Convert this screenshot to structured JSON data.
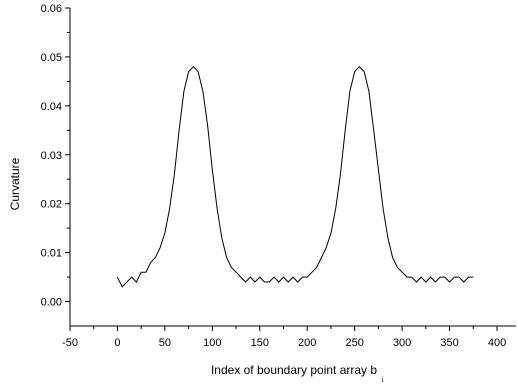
{
  "chart_data": {
    "type": "line",
    "title": "",
    "xlabel": "Index of boundary point array b",
    "xlabel_subscript": "i",
    "ylabel": "Curvature",
    "xlim": [
      -50,
      420
    ],
    "ylim": [
      -0.005,
      0.06
    ],
    "x_ticks": [
      "-50",
      "0",
      "50",
      "100",
      "150",
      "200",
      "250",
      "300",
      "350",
      "400"
    ],
    "y_ticks": [
      "0.00",
      "0.01",
      "0.02",
      "0.03",
      "0.04",
      "0.05",
      "0.06"
    ],
    "grid": false,
    "line_color": "#000000",
    "series": [
      {
        "x": [
          0,
          5,
          10,
          15,
          20,
          25,
          30,
          35,
          40,
          45,
          50,
          55,
          60,
          65,
          70,
          75,
          80,
          85,
          90,
          95,
          100,
          105,
          110,
          115,
          120,
          125,
          130,
          135,
          140,
          145,
          150,
          155,
          160,
          165,
          170,
          175,
          180,
          185,
          190,
          195,
          200,
          205,
          210,
          215,
          220,
          225,
          230,
          235,
          240,
          245,
          250,
          255,
          260,
          265,
          270,
          275,
          280,
          285,
          290,
          295,
          300,
          305,
          310,
          315,
          320,
          325,
          330,
          335,
          340,
          345,
          350,
          355,
          360,
          365,
          370,
          375
        ],
        "y": [
          0.005,
          0.003,
          0.004,
          0.005,
          0.004,
          0.006,
          0.006,
          0.008,
          0.009,
          0.011,
          0.014,
          0.019,
          0.026,
          0.035,
          0.043,
          0.047,
          0.048,
          0.047,
          0.043,
          0.036,
          0.027,
          0.019,
          0.013,
          0.009,
          0.007,
          0.006,
          0.005,
          0.004,
          0.005,
          0.004,
          0.005,
          0.004,
          0.004,
          0.005,
          0.004,
          0.005,
          0.004,
          0.005,
          0.004,
          0.005,
          0.005,
          0.006,
          0.007,
          0.009,
          0.011,
          0.014,
          0.019,
          0.026,
          0.035,
          0.043,
          0.047,
          0.048,
          0.047,
          0.043,
          0.035,
          0.027,
          0.019,
          0.013,
          0.009,
          0.007,
          0.006,
          0.005,
          0.005,
          0.004,
          0.005,
          0.004,
          0.005,
          0.004,
          0.005,
          0.005,
          0.004,
          0.005,
          0.005,
          0.004,
          0.005,
          0.005
        ]
      }
    ]
  }
}
